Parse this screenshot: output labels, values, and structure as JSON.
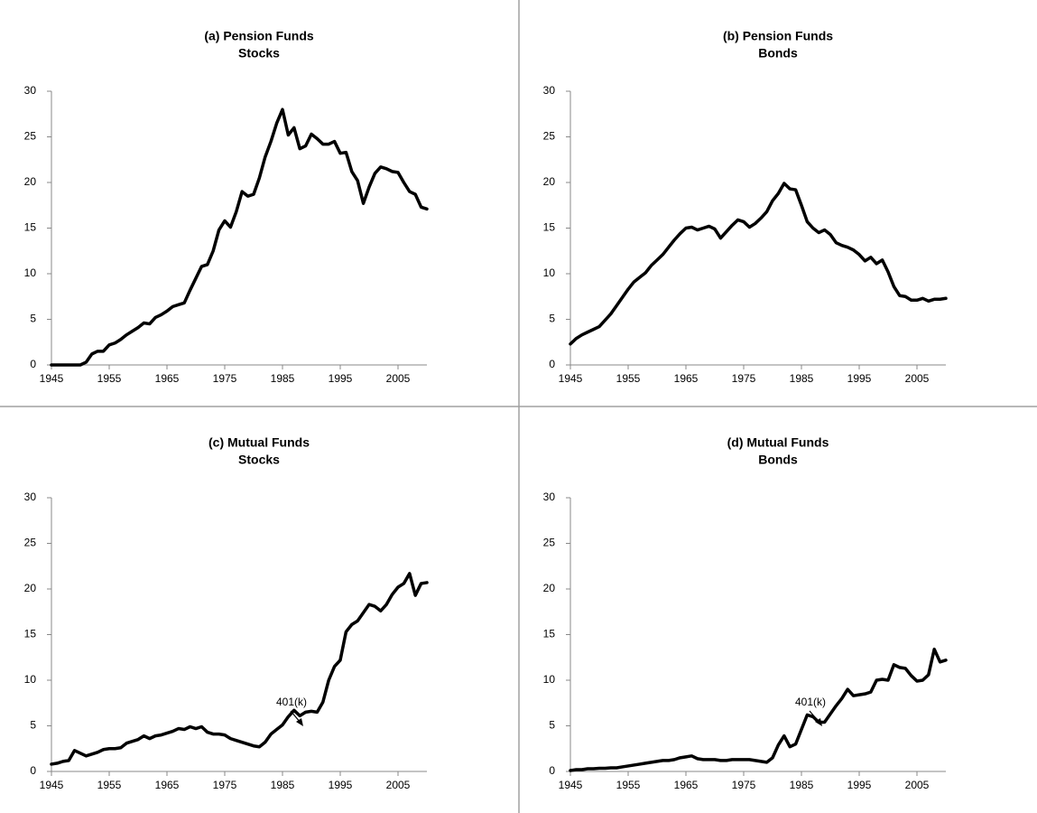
{
  "chart_data": [
    {
      "type": "line",
      "title": "(a) Pension Funds",
      "subtitle": "Stocks",
      "x": [
        1945,
        1946,
        1947,
        1948,
        1949,
        1950,
        1951,
        1952,
        1953,
        1954,
        1955,
        1956,
        1957,
        1958,
        1959,
        1960,
        1961,
        1962,
        1963,
        1964,
        1965,
        1966,
        1967,
        1968,
        1969,
        1970,
        1971,
        1972,
        1973,
        1974,
        1975,
        1976,
        1977,
        1978,
        1979,
        1980,
        1981,
        1982,
        1983,
        1984,
        1985,
        1986,
        1987,
        1988,
        1989,
        1990,
        1991,
        1992,
        1993,
        1994,
        1995,
        1996,
        1997,
        1998,
        1999,
        2000,
        2001,
        2002,
        2003,
        2004,
        2005,
        2006,
        2007,
        2008,
        2009,
        2010
      ],
      "series": [
        {
          "name": "Pension Funds Stocks",
          "color": "#000000",
          "values": [
            0,
            0,
            0,
            0,
            0,
            0,
            0.3,
            1.2,
            1.5,
            1.5,
            2.2,
            2.4,
            2.8,
            3.3,
            3.7,
            4.1,
            4.6,
            4.5,
            5.2,
            5.5,
            5.9,
            6.4,
            6.6,
            6.8,
            8.2,
            9.5,
            10.8,
            11,
            12.5,
            14.8,
            15.8,
            15.1,
            16.8,
            19,
            18.5,
            18.7,
            20.5,
            22.8,
            24.5,
            26.5,
            28,
            25.2,
            26,
            23.7,
            24,
            25.3,
            24.8,
            24.2,
            24.2,
            24.5,
            23.2,
            23.3,
            21.2,
            20.2,
            17.7,
            19.5,
            21,
            21.7,
            21.5,
            21.2,
            21.1,
            20,
            19,
            18.7,
            17.3,
            17.1
          ]
        }
      ],
      "xlim": [
        1945,
        2010
      ],
      "xticks": [
        1945,
        1955,
        1965,
        1975,
        1985,
        1995,
        2005
      ],
      "ylim": [
        0,
        30
      ],
      "yticks": [
        0,
        5,
        10,
        15,
        20,
        25,
        30
      ]
    },
    {
      "type": "line",
      "title": "(b) Pension Funds",
      "subtitle": "Bonds",
      "x": [
        1945,
        1946,
        1947,
        1948,
        1949,
        1950,
        1951,
        1952,
        1953,
        1954,
        1955,
        1956,
        1957,
        1958,
        1959,
        1960,
        1961,
        1962,
        1963,
        1964,
        1965,
        1966,
        1967,
        1968,
        1969,
        1970,
        1971,
        1972,
        1973,
        1974,
        1975,
        1976,
        1977,
        1978,
        1979,
        1980,
        1981,
        1982,
        1983,
        1984,
        1985,
        1986,
        1987,
        1988,
        1989,
        1990,
        1991,
        1992,
        1993,
        1994,
        1995,
        1996,
        1997,
        1998,
        1999,
        2000,
        2001,
        2002,
        2003,
        2004,
        2005,
        2006,
        2007,
        2008,
        2009,
        2010
      ],
      "series": [
        {
          "name": "Pension Funds Bonds",
          "color": "#000000",
          "values": [
            2.3,
            2.9,
            3.3,
            3.6,
            3.9,
            4.2,
            4.9,
            5.6,
            6.5,
            7.4,
            8.3,
            9.1,
            9.6,
            10.1,
            10.9,
            11.5,
            12.1,
            12.9,
            13.7,
            14.4,
            15.0,
            15.1,
            14.8,
            15.0,
            15.2,
            14.9,
            13.9,
            14.6,
            15.3,
            15.9,
            15.7,
            15.1,
            15.5,
            16.1,
            16.8,
            18,
            18.8,
            19.9,
            19.3,
            19.2,
            17.5,
            15.7,
            15,
            14.5,
            14.8,
            14.3,
            13.4,
            13.1,
            12.9,
            12.6,
            12.1,
            11.4,
            11.8,
            11.1,
            11.5,
            10.2,
            8.6,
            7.6,
            7.5,
            7.1,
            7.1,
            7.3,
            7.0,
            7.2,
            7.2,
            7.3
          ]
        }
      ],
      "xlim": [
        1945,
        2010
      ],
      "xticks": [
        1945,
        1955,
        1965,
        1975,
        1985,
        1995,
        2005
      ],
      "ylim": [
        0,
        30
      ],
      "yticks": [
        0,
        5,
        10,
        15,
        20,
        25,
        30
      ]
    },
    {
      "type": "line",
      "title": "(c) Mutual Funds",
      "subtitle": "Stocks",
      "annotation": "401(k)",
      "x": [
        1945,
        1946,
        1947,
        1948,
        1949,
        1950,
        1951,
        1952,
        1953,
        1954,
        1955,
        1956,
        1957,
        1958,
        1959,
        1960,
        1961,
        1962,
        1963,
        1964,
        1965,
        1966,
        1967,
        1968,
        1969,
        1970,
        1971,
        1972,
        1973,
        1974,
        1975,
        1976,
        1977,
        1978,
        1979,
        1980,
        1981,
        1982,
        1983,
        1984,
        1985,
        1986,
        1987,
        1988,
        1989,
        1990,
        1991,
        1992,
        1993,
        1994,
        1995,
        1996,
        1997,
        1998,
        1999,
        2000,
        2001,
        2002,
        2003,
        2004,
        2005,
        2006,
        2007,
        2008,
        2009,
        2010
      ],
      "series": [
        {
          "name": "Mutual Funds Stocks",
          "color": "#000000",
          "values": [
            0.8,
            0.9,
            1.1,
            1.2,
            2.3,
            2.0,
            1.7,
            1.9,
            2.1,
            2.4,
            2.5,
            2.5,
            2.6,
            3.1,
            3.3,
            3.5,
            3.9,
            3.6,
            3.9,
            4.0,
            4.2,
            4.4,
            4.7,
            4.6,
            4.9,
            4.7,
            4.9,
            4.3,
            4.1,
            4.1,
            4.0,
            3.6,
            3.4,
            3.2,
            3.0,
            2.8,
            2.7,
            3.2,
            4.1,
            4.6,
            5.1,
            6.0,
            6.7,
            6.1,
            6.5,
            6.6,
            6.5,
            7.6,
            10.0,
            11.5,
            12.2,
            15.3,
            16.1,
            16.5,
            17.4,
            18.3,
            18.1,
            17.6,
            18.3,
            19.4,
            20.2,
            20.6,
            21.7,
            19.3,
            20.6,
            20.7
          ]
        }
      ],
      "xlim": [
        1945,
        2010
      ],
      "xticks": [
        1945,
        1955,
        1965,
        1975,
        1985,
        1995,
        2005
      ],
      "ylim": [
        0,
        30
      ],
      "yticks": [
        0,
        5,
        10,
        15,
        20,
        25,
        30
      ]
    },
    {
      "type": "line",
      "title": "(d) Mutual Funds",
      "subtitle": "Bonds",
      "annotation": "401(k)",
      "x": [
        1945,
        1946,
        1947,
        1948,
        1949,
        1950,
        1951,
        1952,
        1953,
        1954,
        1955,
        1956,
        1957,
        1958,
        1959,
        1960,
        1961,
        1962,
        1963,
        1964,
        1965,
        1966,
        1967,
        1968,
        1969,
        1970,
        1971,
        1972,
        1973,
        1974,
        1975,
        1976,
        1977,
        1978,
        1979,
        1980,
        1981,
        1982,
        1983,
        1984,
        1985,
        1986,
        1987,
        1988,
        1989,
        1990,
        1991,
        1992,
        1993,
        1994,
        1995,
        1996,
        1997,
        1998,
        1999,
        2000,
        2001,
        2002,
        2003,
        2004,
        2005,
        2006,
        2007,
        2008,
        2009,
        2010
      ],
      "series": [
        {
          "name": "Mutual Funds Bonds",
          "color": "#000000",
          "values": [
            0.1,
            0.2,
            0.2,
            0.3,
            0.3,
            0.35,
            0.35,
            0.4,
            0.4,
            0.5,
            0.6,
            0.7,
            0.8,
            0.9,
            1.0,
            1.1,
            1.2,
            1.2,
            1.3,
            1.5,
            1.6,
            1.7,
            1.4,
            1.3,
            1.3,
            1.3,
            1.2,
            1.2,
            1.3,
            1.3,
            1.3,
            1.3,
            1.2,
            1.1,
            1.0,
            1.5,
            2.9,
            3.9,
            2.7,
            3.0,
            4.6,
            6.2,
            6.0,
            5.4,
            5.4,
            6.3,
            7.2,
            8.0,
            9.0,
            8.3,
            8.4,
            8.5,
            8.7,
            10.0,
            10.1,
            10.0,
            11.7,
            11.4,
            11.3,
            10.5,
            9.9,
            10.0,
            10.6,
            13.4,
            12.0,
            12.2
          ]
        }
      ],
      "xlim": [
        1945,
        2010
      ],
      "xticks": [
        1945,
        1955,
        1965,
        1975,
        1985,
        1995,
        2005
      ],
      "ylim": [
        0,
        30
      ],
      "yticks": [
        0,
        5,
        10,
        15,
        20,
        25,
        30
      ]
    }
  ]
}
